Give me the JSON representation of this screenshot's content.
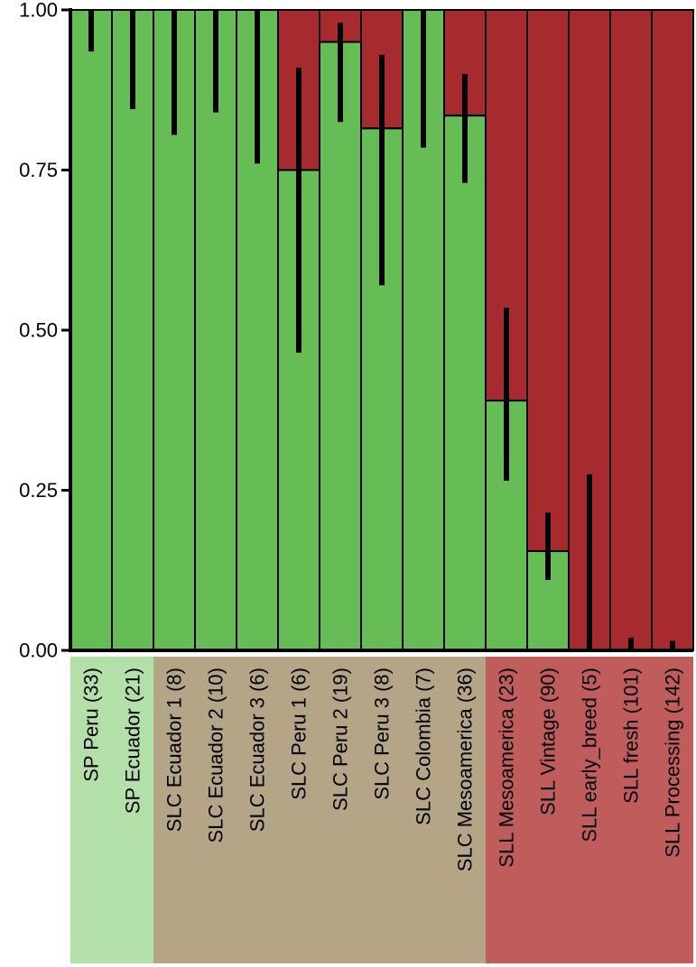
{
  "chart_data": {
    "type": "bar",
    "stacked": true,
    "categories": [
      "SP Peru (33)",
      "SP Ecuador (21)",
      "SLC Ecuador 1 (8)",
      "SLC Ecuador 2 (10)",
      "SLC Ecuador 3 (6)",
      "SLC Peru 1 (6)",
      "SLC Peru 2 (19)",
      "SLC Peru 3 (8)",
      "SLC Colombia (7)",
      "SLC Mesoamerica (36)",
      "SLL Mesoamerica (23)",
      "SLL Vintage (90)",
      "SLL early_breed (5)",
      "SLL fresh (101)",
      "SLL Processing (142)"
    ],
    "series": [
      {
        "values": [
          1.0,
          1.0,
          1.0,
          1.0,
          1.0,
          0.75,
          0.95,
          0.815,
          1.0,
          0.835,
          0.39,
          0.155,
          0.0,
          0.0,
          0.0
        ]
      },
      {
        "values": [
          0.0,
          0.0,
          0.0,
          0.0,
          0.0,
          0.25,
          0.05,
          0.185,
          0.0,
          0.165,
          0.61,
          0.845,
          1.0,
          1.0,
          1.0
        ]
      }
    ],
    "error_bars": {
      "low": [
        0.935,
        0.845,
        0.805,
        0.84,
        0.76,
        0.465,
        0.825,
        0.57,
        0.785,
        0.73,
        0.265,
        0.11,
        0.0,
        0.0,
        0.0
      ],
      "high": [
        1.0,
        1.0,
        1.0,
        1.0,
        1.0,
        0.91,
        0.98,
        0.93,
        1.0,
        0.9,
        0.535,
        0.215,
        0.275,
        0.02,
        0.015
      ]
    },
    "ylim": [
      0,
      1
    ],
    "yticks": [
      "0.00",
      "0.25",
      "0.50",
      "0.75",
      "1.00"
    ],
    "group_backgrounds": [
      {
        "group": "SP",
        "from": 0,
        "to": 1,
        "color": "#b3dfa9"
      },
      {
        "group": "SLC",
        "from": 2,
        "to": 9,
        "color": "#b3a586"
      },
      {
        "group": "SLL",
        "from": 10,
        "to": 14,
        "color": "#c05c5c"
      }
    ],
    "colors": {
      "green": "#66bd55",
      "red": "#a62a2e"
    }
  }
}
